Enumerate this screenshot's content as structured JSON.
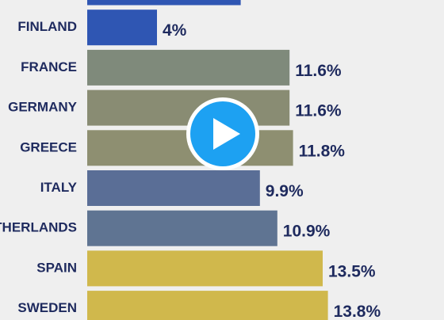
{
  "chart_data": {
    "type": "bar",
    "orientation": "horizontal",
    "categories": [
      null,
      "FINLAND",
      "FRANCE",
      "GERMANY",
      "GREECE",
      "ITALY",
      "NETHERLANDS",
      "SPAIN",
      "SWEDEN"
    ],
    "values": [
      8.8,
      4,
      11.6,
      11.6,
      11.8,
      9.9,
      10.9,
      13.5,
      13.8
    ],
    "value_labels": [
      null,
      "4%",
      "11.6%",
      "11.6%",
      "11.8%",
      "9.9%",
      "10.9%",
      "13.5%",
      "13.8%"
    ],
    "colors": [
      "#2f56b3",
      "#2f56b3",
      "#7f8a7b",
      "#898c73",
      "#8e8f71",
      "#5a6e96",
      "#5f7492",
      "#d0b84c",
      "#d0b84c"
    ]
  }
}
